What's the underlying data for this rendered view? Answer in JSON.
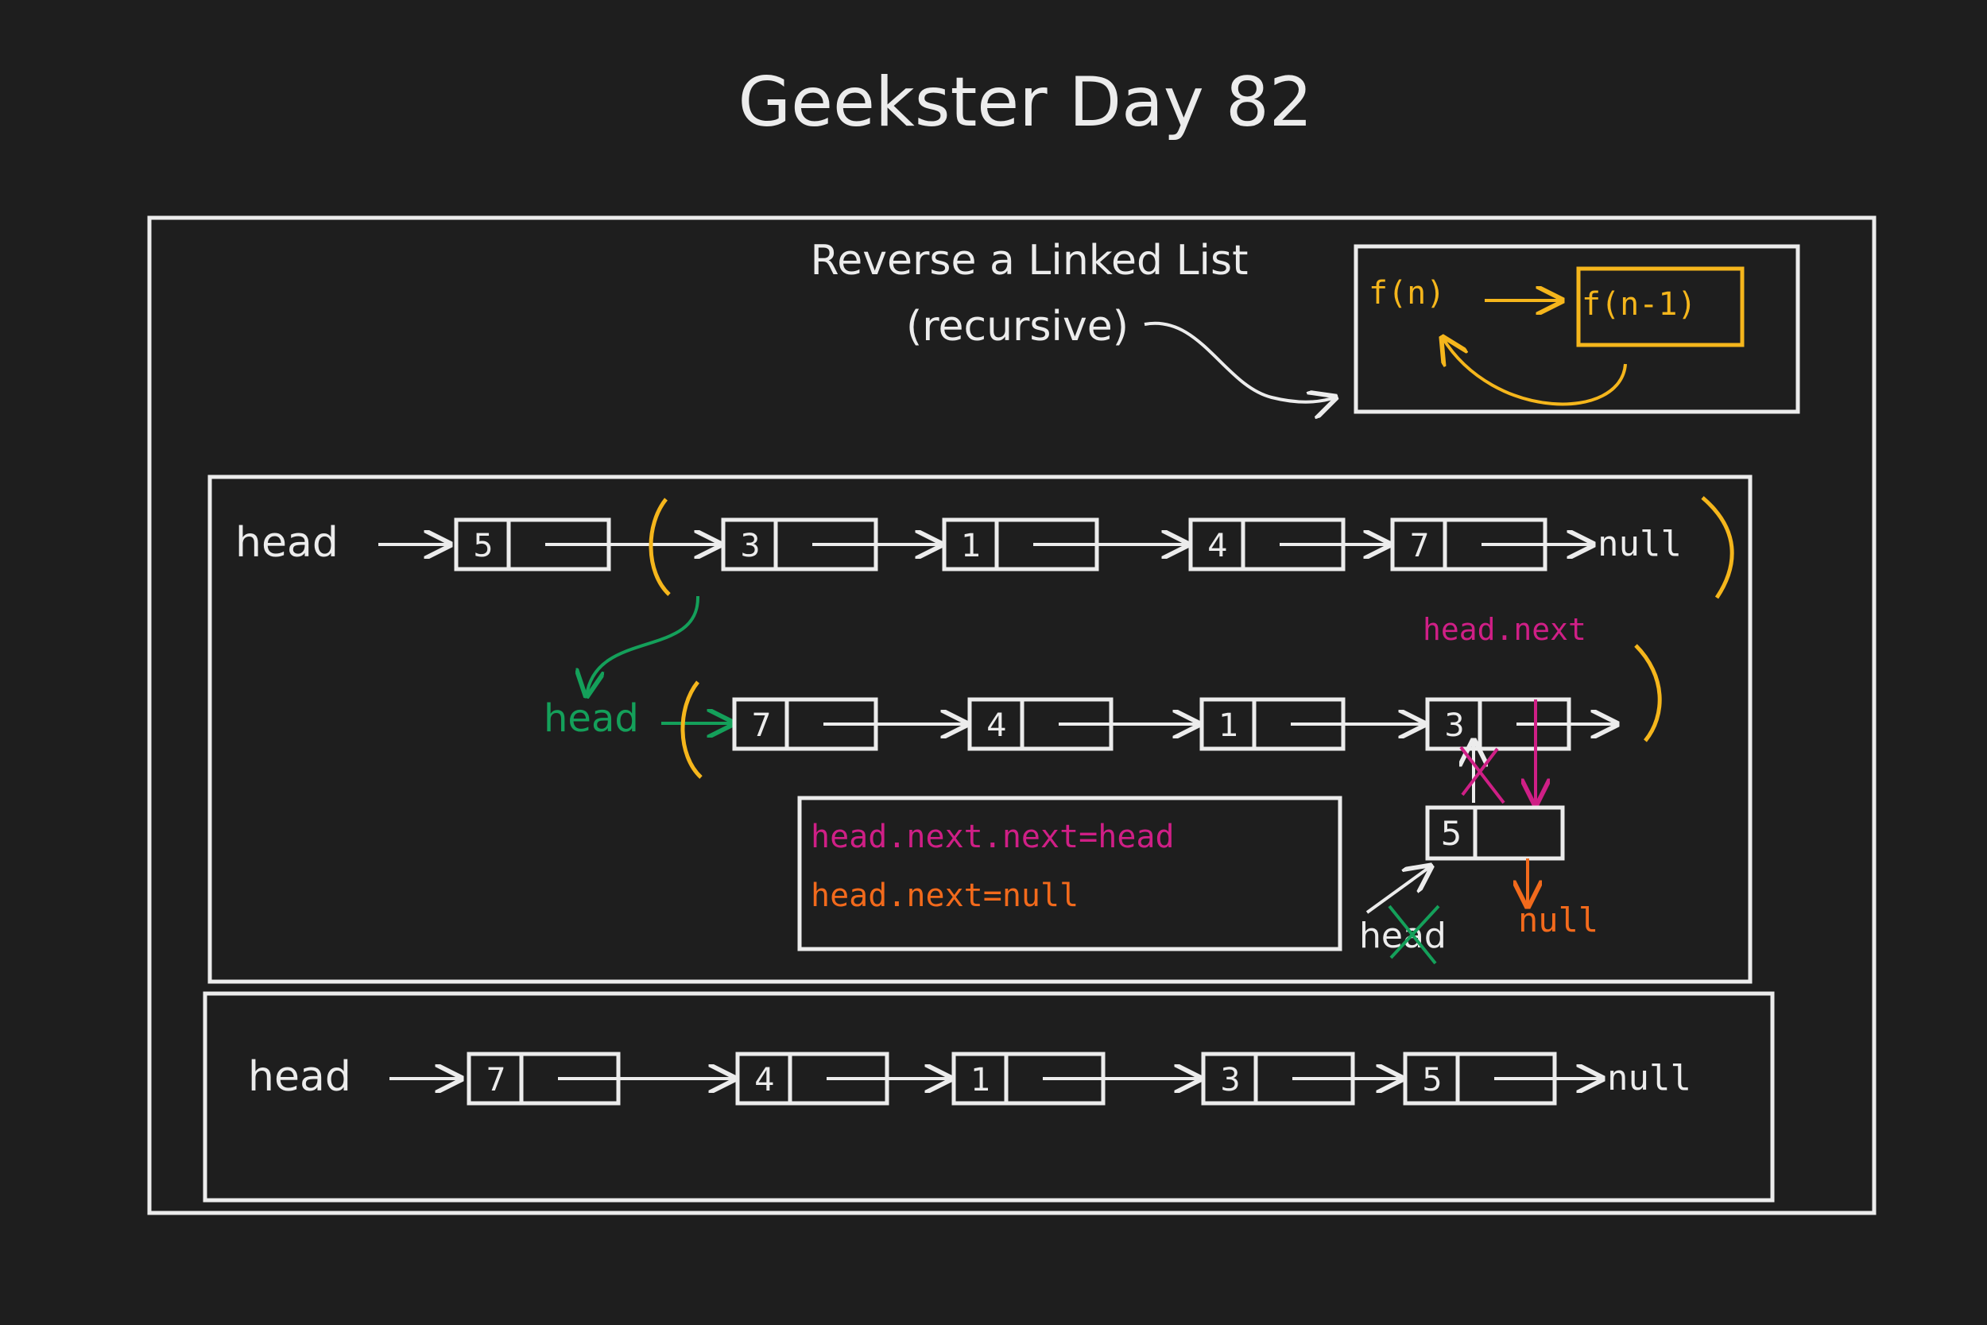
{
  "title": "Geekster Day 82",
  "heading": {
    "line1": "Reverse a Linked List",
    "line2": "(recursive)"
  },
  "recursion_box": {
    "caller": "f(n)",
    "callee": "f(n-1)"
  },
  "labels": {
    "head": "head",
    "null": "null",
    "head_next": "head.next",
    "code_line1": "head.next.next=head",
    "code_line2": "head.next=null"
  },
  "lists": {
    "original": [
      "5",
      "3",
      "1",
      "4",
      "7"
    ],
    "reversed_sublist": [
      "7",
      "4",
      "1",
      "3"
    ],
    "detached_node": "5",
    "result": [
      "7",
      "4",
      "1",
      "3",
      "5"
    ]
  },
  "colors": {
    "background": "#1e1e1e",
    "stroke": "#ececec",
    "yellow": "#f5b61c",
    "green": "#14a05a",
    "magenta": "#cf1f86",
    "orange": "#f26a1c"
  }
}
